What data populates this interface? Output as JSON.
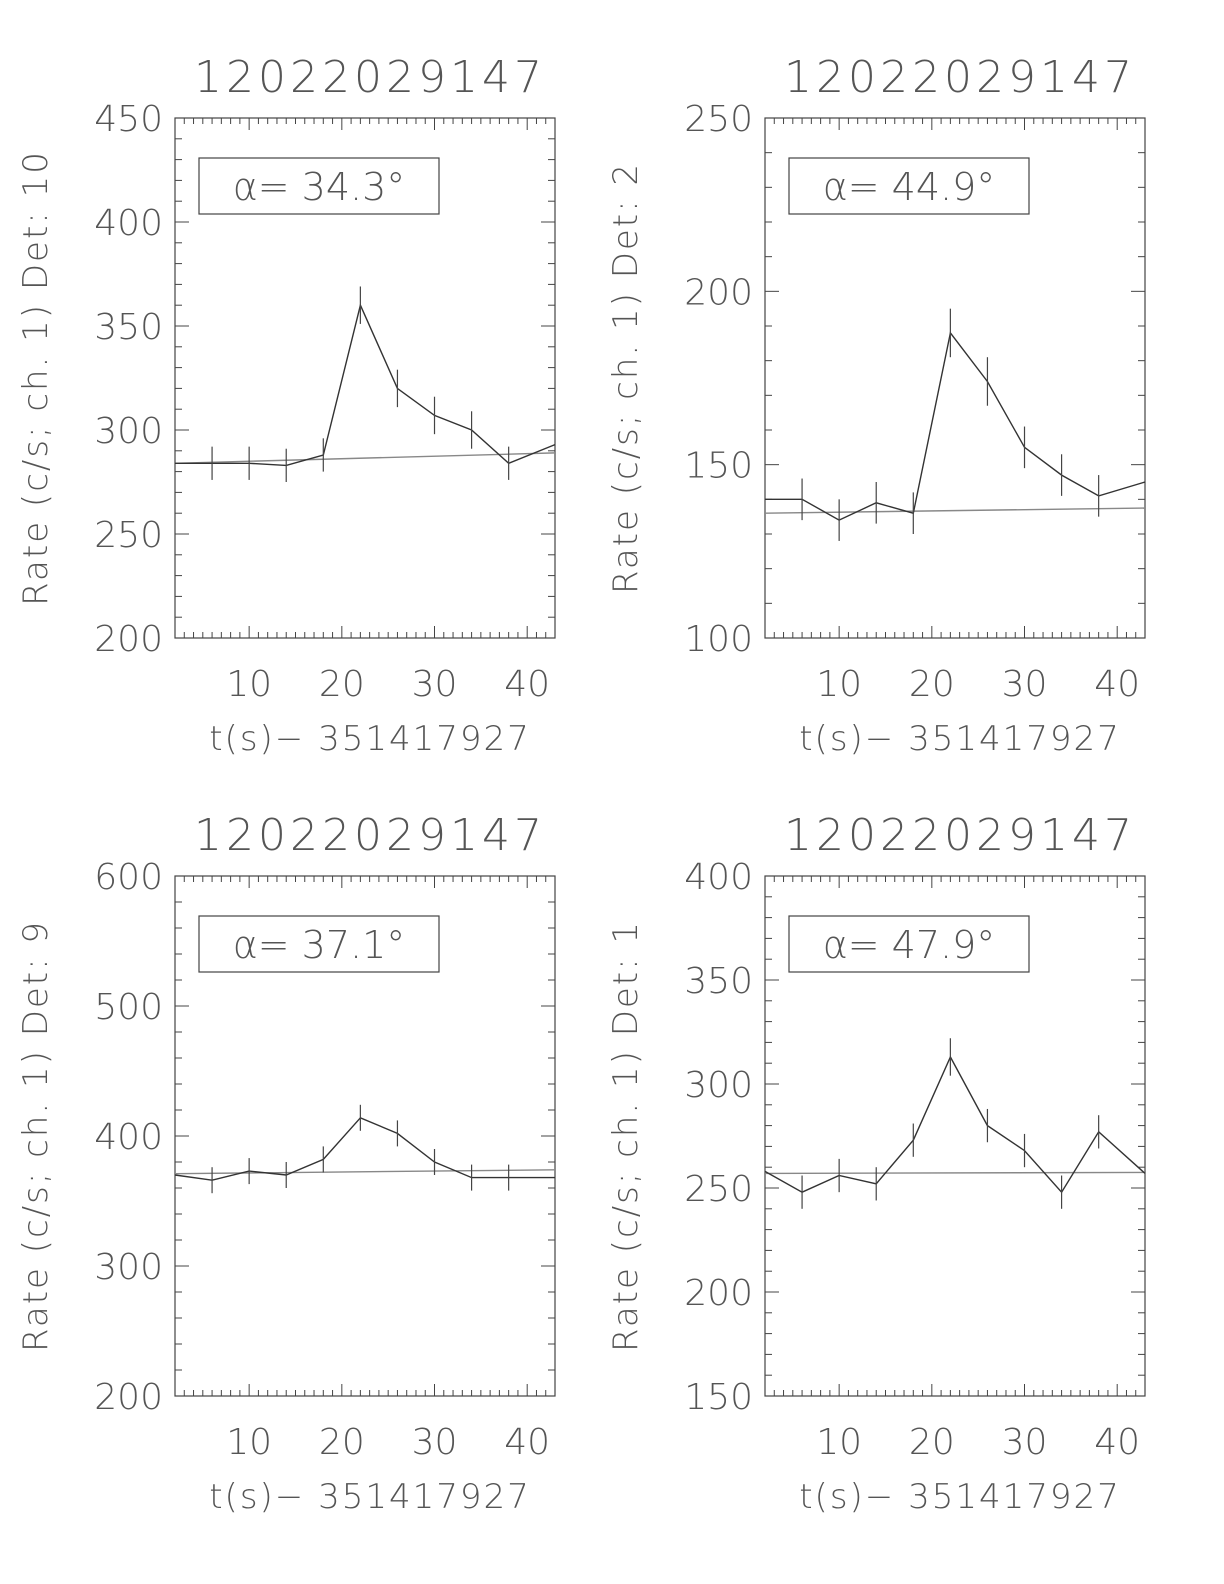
{
  "chart_data": [
    {
      "type": "line",
      "title": "12022029147",
      "xlabel": "t(s)− 351417927",
      "ylabel": "Rate (c/s; ch. 1) Det: 10",
      "xlim": [
        2,
        43
      ],
      "ylim": [
        200,
        450
      ],
      "xticks": [
        10,
        20,
        30,
        40
      ],
      "yticks": [
        200,
        250,
        300,
        350,
        400,
        450
      ],
      "annotation": "α= 34.3°",
      "series": [
        {
          "x": [
            2,
            6,
            10,
            14,
            18,
            22,
            26,
            30,
            34,
            38,
            43
          ],
          "y": [
            284,
            284,
            284,
            283,
            288,
            360,
            320,
            307,
            300,
            284,
            293
          ],
          "err": [
            0,
            8,
            8,
            8,
            8,
            9,
            9,
            9,
            9,
            8,
            0
          ]
        }
      ],
      "background": {
        "x": [
          2,
          43
        ],
        "y": [
          284,
          289
        ]
      }
    },
    {
      "type": "line",
      "title": "12022029147",
      "xlabel": "t(s)− 351417927",
      "ylabel": "Rate (c/s; ch. 1) Det: 2",
      "xlim": [
        2,
        43
      ],
      "ylim": [
        100,
        250
      ],
      "xticks": [
        10,
        20,
        30,
        40
      ],
      "yticks": [
        100,
        150,
        200,
        250
      ],
      "annotation": "α= 44.9°",
      "series": [
        {
          "x": [
            2,
            6,
            10,
            14,
            18,
            22,
            26,
            30,
            34,
            38,
            43
          ],
          "y": [
            140,
            140,
            134,
            139,
            136,
            188,
            174,
            155,
            147,
            141,
            145
          ],
          "err": [
            0,
            6,
            6,
            6,
            6,
            7,
            7,
            6,
            6,
            6,
            0
          ]
        }
      ],
      "background": {
        "x": [
          2,
          43
        ],
        "y": [
          136,
          137.5
        ]
      }
    },
    {
      "type": "line",
      "title": "12022029147",
      "xlabel": "t(s)− 351417927",
      "ylabel": "Rate (c/s; ch. 1) Det: 9",
      "xlim": [
        2,
        43
      ],
      "ylim": [
        200,
        600
      ],
      "xticks": [
        10,
        20,
        30,
        40
      ],
      "yticks": [
        200,
        300,
        400,
        500,
        600
      ],
      "annotation": "α= 37.1°",
      "series": [
        {
          "x": [
            2,
            6,
            10,
            14,
            18,
            22,
            26,
            30,
            34,
            38,
            43
          ],
          "y": [
            370,
            366,
            373,
            370,
            382,
            414,
            402,
            380,
            368,
            368,
            368
          ],
          "err": [
            0,
            10,
            10,
            10,
            10,
            10,
            10,
            10,
            10,
            10,
            0
          ]
        }
      ],
      "background": {
        "x": [
          2,
          43
        ],
        "y": [
          371,
          374
        ]
      }
    },
    {
      "type": "line",
      "title": "12022029147",
      "xlabel": "t(s)− 351417927",
      "ylabel": "Rate (c/s; ch. 1) Det: 1",
      "xlim": [
        2,
        43
      ],
      "ylim": [
        150,
        400
      ],
      "xticks": [
        10,
        20,
        30,
        40
      ],
      "yticks": [
        150,
        200,
        250,
        300,
        350,
        400
      ],
      "annotation": "α= 47.9°",
      "series": [
        {
          "x": [
            2,
            6,
            10,
            14,
            18,
            22,
            26,
            30,
            34,
            38,
            43
          ],
          "y": [
            258,
            248,
            256,
            252,
            273,
            313,
            280,
            268,
            248,
            277,
            257
          ],
          "err": [
            0,
            8,
            8,
            8,
            8,
            9,
            8,
            8,
            8,
            8,
            0
          ]
        }
      ],
      "background": {
        "x": [
          2,
          43
        ],
        "y": [
          257,
          257.5
        ]
      }
    }
  ]
}
